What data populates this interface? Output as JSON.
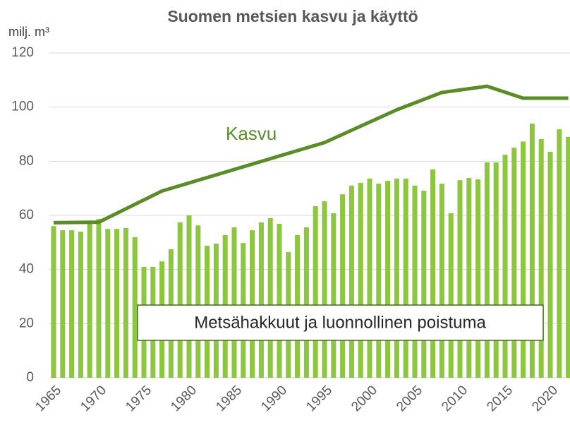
{
  "chart_data": {
    "type": "bar",
    "title": "Suomen metsien kasvu ja käyttö",
    "y_label": "milj. m³",
    "x": [
      1965,
      1966,
      1967,
      1968,
      1969,
      1970,
      1971,
      1972,
      1973,
      1974,
      1975,
      1976,
      1977,
      1978,
      1979,
      1980,
      1981,
      1982,
      1983,
      1984,
      1985,
      1986,
      1987,
      1988,
      1989,
      1990,
      1991,
      1992,
      1993,
      1994,
      1995,
      1996,
      1997,
      1998,
      1999,
      2000,
      2001,
      2002,
      2003,
      2004,
      2005,
      2006,
      2007,
      2008,
      2009,
      2010,
      2011,
      2012,
      2013,
      2014,
      2015,
      2016,
      2017,
      2018,
      2019,
      2020,
      2021,
      2022
    ],
    "series": [
      {
        "name": "Metsähakkuut ja luonnollinen poistuma",
        "color": "#8dc63f",
        "values": [
          56,
          54.5,
          54.5,
          54,
          57,
          58.7,
          55,
          55,
          55.3,
          52,
          41,
          41,
          43,
          47.5,
          57.4,
          60,
          56.3,
          48.8,
          49.6,
          52.7,
          55.6,
          49.8,
          54.5,
          57.4,
          59,
          56.9,
          46.4,
          52.7,
          55.6,
          63.4,
          65.2,
          60.8,
          67.8,
          71,
          72,
          73.6,
          71.7,
          72.8,
          73.6,
          73.6,
          71,
          69.1,
          77,
          71.7,
          60.8,
          73,
          73.8,
          73.3,
          79.6,
          79.6,
          82.4,
          85,
          87.3,
          93.9,
          88.2,
          83.5,
          91.8,
          89
        ]
      },
      {
        "name": "Kasvu",
        "type": "line",
        "color": "#5b8c2a",
        "x": [
          1965,
          1970,
          1977,
          1995,
          2003,
          2008,
          2013,
          2017,
          2022
        ],
        "values": [
          57.3,
          57.5,
          69,
          86.9,
          99,
          105.4,
          107.7,
          103.3,
          103.3
        ]
      }
    ],
    "xlim": [
      1964.5,
      2022.5
    ],
    "xticks": [
      1965,
      1970,
      1975,
      1980,
      1985,
      1990,
      1995,
      2000,
      2005,
      2010,
      2015,
      2020
    ],
    "ylim": [
      0,
      120
    ],
    "yticks": [
      0,
      20,
      40,
      60,
      80,
      100,
      120
    ],
    "grid": true
  }
}
